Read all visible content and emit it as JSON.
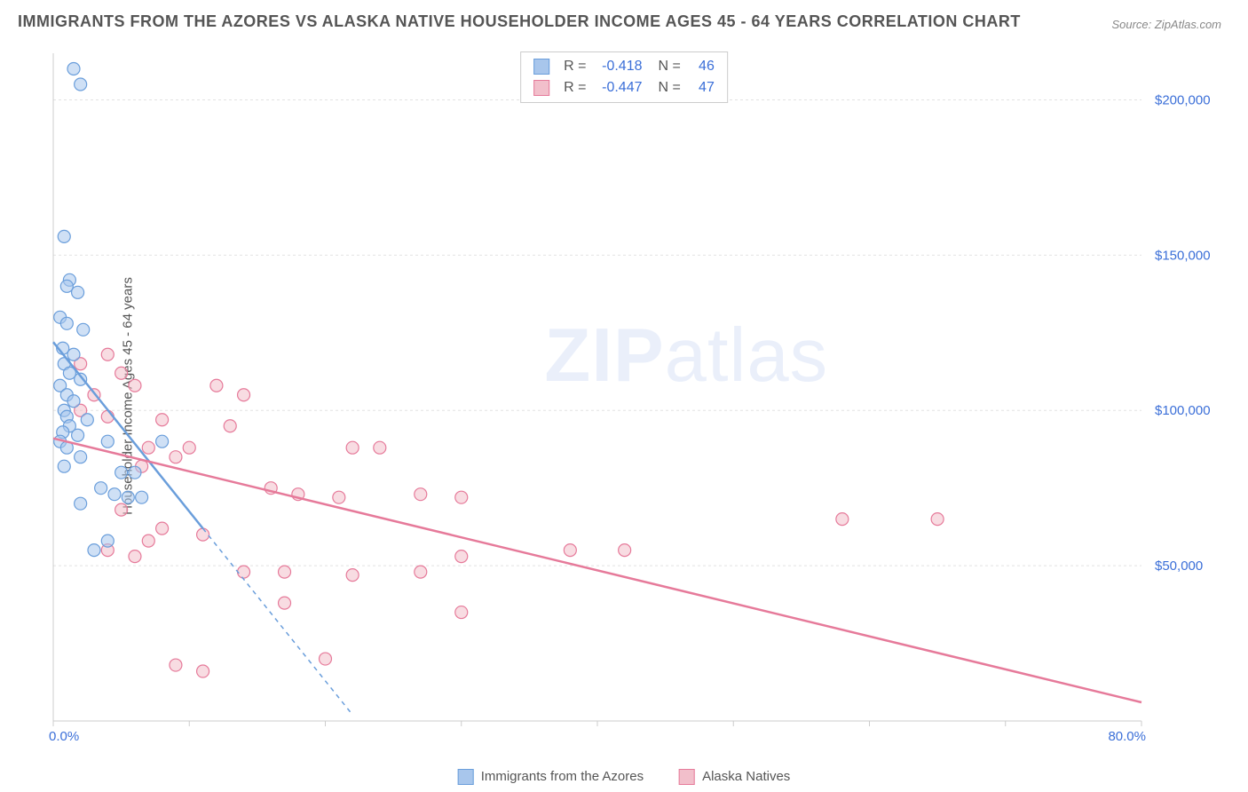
{
  "title": "IMMIGRANTS FROM THE AZORES VS ALASKA NATIVE HOUSEHOLDER INCOME AGES 45 - 64 YEARS CORRELATION CHART",
  "source": "Source: ZipAtlas.com",
  "ylabel": "Householder Income Ages 45 - 64 years",
  "watermark_a": "ZIP",
  "watermark_b": "atlas",
  "chart": {
    "type": "scatter",
    "xlim": [
      0,
      80
    ],
    "ylim": [
      0,
      215000
    ],
    "xticks": [
      0,
      10,
      20,
      30,
      40,
      50,
      60,
      70,
      80
    ],
    "yticks": [
      50000,
      100000,
      150000,
      200000
    ],
    "ytick_labels": [
      "$50,000",
      "$100,000",
      "$150,000",
      "$200,000"
    ],
    "x_start_label": "0.0%",
    "x_end_label": "80.0%",
    "background_color": "#ffffff",
    "grid_color": "#e2e2e2",
    "axis_color": "#cccccc",
    "tick_label_color": "#3b6fd8",
    "series": [
      {
        "name": "Immigrants from the Azores",
        "color_fill": "#a8c6ec",
        "color_stroke": "#6a9edb",
        "marker_size": 7,
        "regression": {
          "x1": 0,
          "y1": 122000,
          "x2": 11,
          "y2": 62000,
          "dash_to_x": 22
        },
        "R": "-0.418",
        "N": "46",
        "points": [
          [
            1.5,
            210000
          ],
          [
            2.0,
            205000
          ],
          [
            0.8,
            156000
          ],
          [
            1.2,
            142000
          ],
          [
            1.0,
            140000
          ],
          [
            1.8,
            138000
          ],
          [
            0.5,
            130000
          ],
          [
            1.0,
            128000
          ],
          [
            2.2,
            126000
          ],
          [
            0.7,
            120000
          ],
          [
            1.5,
            118000
          ],
          [
            0.8,
            115000
          ],
          [
            1.2,
            112000
          ],
          [
            2.0,
            110000
          ],
          [
            0.5,
            108000
          ],
          [
            1.0,
            105000
          ],
          [
            1.5,
            103000
          ],
          [
            0.8,
            100000
          ],
          [
            1.0,
            98000
          ],
          [
            2.5,
            97000
          ],
          [
            1.2,
            95000
          ],
          [
            0.7,
            93000
          ],
          [
            1.8,
            92000
          ],
          [
            0.5,
            90000
          ],
          [
            4.0,
            90000
          ],
          [
            1.0,
            88000
          ],
          [
            2.0,
            85000
          ],
          [
            0.8,
            82000
          ],
          [
            5.0,
            80000
          ],
          [
            6.0,
            80000
          ],
          [
            8.0,
            90000
          ],
          [
            3.5,
            75000
          ],
          [
            4.5,
            73000
          ],
          [
            5.5,
            72000
          ],
          [
            6.5,
            72000
          ],
          [
            2.0,
            70000
          ],
          [
            4.0,
            58000
          ],
          [
            3.0,
            55000
          ]
        ]
      },
      {
        "name": "Alaska Natives",
        "color_fill": "#f2bfcb",
        "color_stroke": "#e67a9a",
        "marker_size": 7,
        "regression": {
          "x1": 0,
          "y1": 91000,
          "x2": 80,
          "y2": 6000
        },
        "R": "-0.447",
        "N": "47",
        "points": [
          [
            4.0,
            118000
          ],
          [
            2.0,
            115000
          ],
          [
            5.0,
            112000
          ],
          [
            6.0,
            108000
          ],
          [
            3.0,
            105000
          ],
          [
            12.0,
            108000
          ],
          [
            14.0,
            105000
          ],
          [
            2.0,
            100000
          ],
          [
            4.0,
            98000
          ],
          [
            8.0,
            97000
          ],
          [
            7.0,
            88000
          ],
          [
            13.0,
            95000
          ],
          [
            10.0,
            88000
          ],
          [
            22.0,
            88000
          ],
          [
            24.0,
            88000
          ],
          [
            6.5,
            82000
          ],
          [
            9.0,
            85000
          ],
          [
            16.0,
            75000
          ],
          [
            18.0,
            73000
          ],
          [
            21.0,
            72000
          ],
          [
            27.0,
            73000
          ],
          [
            30.0,
            72000
          ],
          [
            5.0,
            68000
          ],
          [
            8.0,
            62000
          ],
          [
            11.0,
            60000
          ],
          [
            7.0,
            58000
          ],
          [
            4.0,
            55000
          ],
          [
            6.0,
            53000
          ],
          [
            38.0,
            55000
          ],
          [
            42.0,
            55000
          ],
          [
            58.0,
            65000
          ],
          [
            14.0,
            48000
          ],
          [
            17.0,
            48000
          ],
          [
            22.0,
            47000
          ],
          [
            27.0,
            48000
          ],
          [
            30.0,
            53000
          ],
          [
            17.0,
            38000
          ],
          [
            30.0,
            35000
          ],
          [
            9.0,
            18000
          ],
          [
            11.0,
            16000
          ],
          [
            20.0,
            20000
          ],
          [
            65.0,
            65000
          ]
        ]
      }
    ]
  },
  "legend_bottom": [
    {
      "label": "Immigrants from the Azores",
      "fill": "#a8c6ec",
      "stroke": "#6a9edb"
    },
    {
      "label": "Alaska Natives",
      "fill": "#f2bfcb",
      "stroke": "#e67a9a"
    }
  ]
}
